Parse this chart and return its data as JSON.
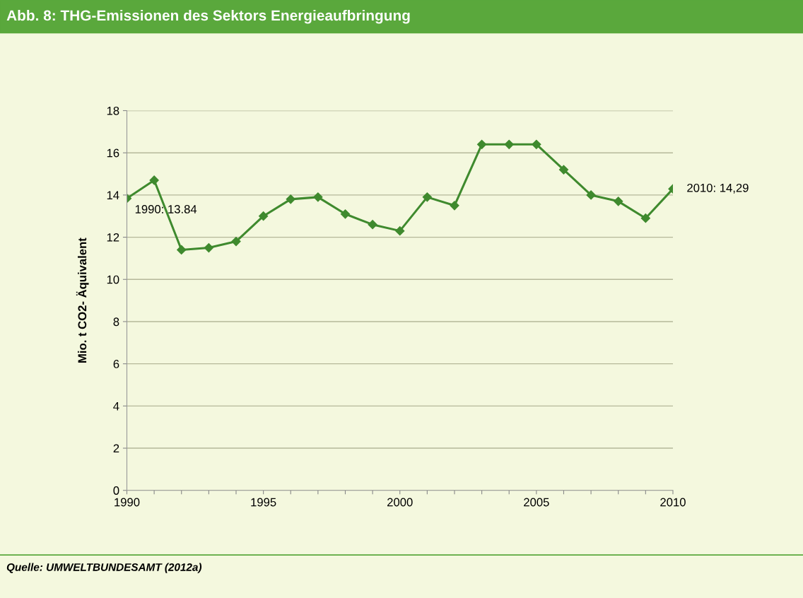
{
  "chart_data": {
    "type": "line",
    "title": "Abb. 8: THG-Emissionen des Sektors Energieaufbringung",
    "ylabel": "Mio. t CO2- Äquivalent",
    "x": [
      1990,
      1991,
      1992,
      1993,
      1994,
      1995,
      1996,
      1997,
      1998,
      1999,
      2000,
      2001,
      2002,
      2003,
      2004,
      2005,
      2006,
      2007,
      2008,
      2009,
      2010
    ],
    "series": [
      {
        "color": "#3f8a2e",
        "values": [
          13.84,
          14.7,
          11.4,
          11.5,
          11.8,
          13.0,
          13.8,
          13.9,
          13.1,
          12.6,
          12.3,
          13.9,
          13.5,
          16.4,
          16.4,
          16.4,
          15.2,
          14.0,
          13.7,
          12.9,
          14.29
        ]
      }
    ],
    "xlim": [
      1990,
      2010
    ],
    "xticks": [
      1990,
      {
        "value": 1991,
        "label": null
      },
      {
        "value": 1992,
        "label": null
      },
      {
        "value": 1993,
        "label": null
      },
      {
        "value": 1994,
        "label": null
      },
      1995,
      {
        "value": 1996,
        "label": null
      },
      {
        "value": 1997,
        "label": null
      },
      {
        "value": 1998,
        "label": null
      },
      {
        "value": 1999,
        "label": null
      },
      2000,
      {
        "value": 2001,
        "label": null
      },
      {
        "value": 2002,
        "label": null
      },
      {
        "value": 2003,
        "label": null
      },
      {
        "value": 2004,
        "label": null
      },
      2005,
      {
        "value": 2006,
        "label": null
      },
      {
        "value": 2007,
        "label": null
      },
      {
        "value": 2008,
        "label": null
      },
      {
        "value": 2009,
        "label": null
      },
      2010
    ],
    "ylim": [
      0,
      18
    ],
    "yticks": [
      0,
      2,
      4,
      6,
      8,
      10,
      12,
      14,
      16,
      18
    ],
    "grid": "y",
    "marker": "diamond",
    "line_style": "solid",
    "annotations": [
      {
        "text": "1990: 13.84",
        "x": 1990,
        "y": 13.84
      },
      {
        "text": "2010: 14,29",
        "x": 2010,
        "y": 14.29
      },
      "Quelle: UMWELTBUNDESAMT (2012a)"
    ]
  }
}
